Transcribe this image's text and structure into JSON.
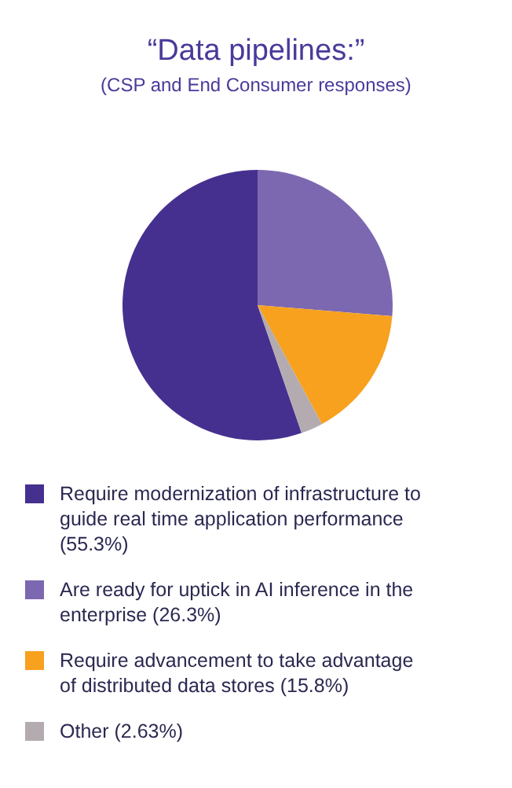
{
  "chart_data": {
    "type": "pie",
    "title": "“Data pipelines:”",
    "subtitle": "(CSP and End Consumer responses)",
    "categories": [
      "Require modernization of infrastructure to guide real time application performance (55.3%)",
      "Are ready for uptick in AI inference in the enterprise (26.3%)",
      "Require advancement to take advantage of distributed data stores (15.8%)",
      "Other (2.63%)"
    ],
    "values": [
      55.3,
      26.3,
      15.8,
      2.63
    ],
    "colors": [
      "#46308f",
      "#7b68b0",
      "#f7a11f",
      "#b3abb0"
    ],
    "legend": "bottom"
  }
}
